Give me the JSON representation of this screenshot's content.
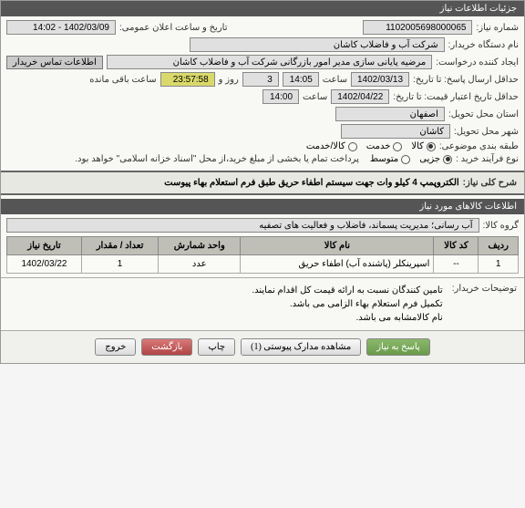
{
  "header": {
    "title": "جزئیات اطلاعات نیاز"
  },
  "fields": {
    "need_no_label": "شماره نیاز:",
    "need_no": "1102005698000065",
    "announce_label": "تاریخ و ساعت اعلان عمومی:",
    "announce": "1402/03/09 - 14:02",
    "org_label": "نام دستگاه خریدار:",
    "org": "شرکت آب و فاضلاب کاشان",
    "creator_label": "ایجاد کننده درخواست:",
    "creator": "مرضیه پایانی سازی مدیر امور بازرگانی شرکت آب و فاضلاب کاشان",
    "contact_btn": "اطلاعات تماس خریدار",
    "min_date_label": "حداقل ارسال پاسخ: تا تاریخ:",
    "min_date": "1402/03/13",
    "time_label": "ساعت",
    "min_time": "14:05",
    "days": "3",
    "days_label": "روز و",
    "countdown": "23:57:58",
    "remain_label": "ساعت باقی مانده",
    "max_date_label": "حداقل تاریخ اعتبار قیمت: تا تاریخ:",
    "max_date": "1402/04/22",
    "max_time": "14:00",
    "province_label": "استان محل تحویل:",
    "province": "اصفهان",
    "city_label": "شهر محل تحویل:",
    "city": "کاشان",
    "category_label": "طبقه بندی موضوعی:",
    "cat_goods": "کالا",
    "cat_service": "خدمت",
    "cat_both": "کالا/خدمت",
    "process_label": "نوع فرآیند خرید :",
    "proc_small": "جزیی",
    "proc_medium": "متوسط",
    "proc_note": "پرداخت تمام یا بخشی از مبلغ خرید،از محل \"اسناد خزانه اسلامی\" خواهد بود.",
    "desc_label": "شرح کلی نیاز:",
    "desc": "الکتروپمپ 4 کیلو وات جهت سیستم اطفاء حریق طبق فرم استعلام بهاء پیوست"
  },
  "items_section": {
    "title": "اطلاعات کالاهای مورد نیاز",
    "group_label": "گروه کالا:",
    "group": "آب رسانی؛ مدیریت پسماند، فاضلاب و فعالیت های تصفیه",
    "columns": [
      "ردیف",
      "کد کالا",
      "نام کالا",
      "واحد شمارش",
      "تعداد / مقدار",
      "تاریخ نیاز"
    ],
    "rows": [
      {
        "idx": "1",
        "code": "--",
        "name": "اسپرینکلر (پاشنده آب) اطفاء حریق",
        "unit": "عدد",
        "qty": "1",
        "date": "1402/03/22"
      }
    ]
  },
  "notes": {
    "label": "توضیحات خریدار:",
    "line1": "تامین کنندگان نسبت به ارائه قیمت کل اقدام نمایند.",
    "line2": "تکمیل فرم استعلام بهاء الزامی می باشد.",
    "line3": "نام کالامشابه می باشد."
  },
  "buttons": {
    "respond": "پاسخ به نیاز",
    "attachments": "مشاهده مدارک پیوستی (1)",
    "print": "چاپ",
    "back": "بازگشت",
    "exit": "خروج"
  },
  "colors": {
    "header_bg": "#555555",
    "box_bg": "#e0e0e0",
    "countdown_bg": "#d9d96b"
  }
}
